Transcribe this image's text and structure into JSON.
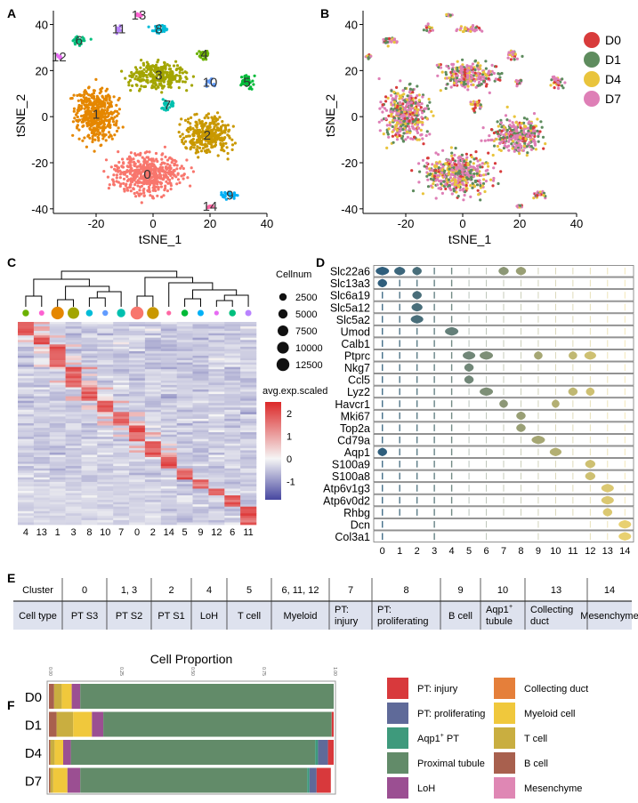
{
  "panels": {
    "a": "A",
    "b": "B",
    "c": "C",
    "d": "D",
    "e": "E",
    "f": "F"
  },
  "chart_data": [
    {
      "type": "scatter",
      "id": "tsne_clusters",
      "xlabel": "tSNE_1",
      "ylabel": "tSNE_2",
      "xlim": [
        -35,
        40
      ],
      "ylim": [
        -42,
        46
      ],
      "xticks": [
        -20,
        0,
        20,
        40
      ],
      "yticks": [
        -40,
        -20,
        0,
        20,
        40
      ],
      "clusters": [
        {
          "label": "0",
          "color": "#F8766D",
          "center": [
            -2,
            -25
          ],
          "spread": [
            20,
            15
          ]
        },
        {
          "label": "1",
          "color": "#E58700",
          "center": [
            -20,
            1
          ],
          "spread": [
            13,
            21
          ]
        },
        {
          "label": "2",
          "color": "#C99800",
          "center": [
            19,
            -8
          ],
          "spread": [
            15,
            14
          ]
        },
        {
          "label": "3",
          "color": "#A3A500",
          "center": [
            2,
            18
          ],
          "spread": [
            18,
            10
          ]
        },
        {
          "label": "4",
          "color": "#6BB100",
          "center": [
            18,
            27
          ],
          "spread": [
            4,
            4
          ]
        },
        {
          "label": "5",
          "color": "#00BA38",
          "center": [
            33,
            15
          ],
          "spread": [
            4,
            6
          ]
        },
        {
          "label": "6",
          "color": "#00BF7D",
          "center": [
            -26,
            33
          ],
          "spread": [
            6,
            3
          ]
        },
        {
          "label": "7",
          "color": "#00C0AF",
          "center": [
            5,
            5
          ],
          "spread": [
            4,
            4
          ]
        },
        {
          "label": "8",
          "color": "#00BCD8",
          "center": [
            2,
            38
          ],
          "spread": [
            7,
            3
          ]
        },
        {
          "label": "9",
          "color": "#00B0F6",
          "center": [
            27,
            -34
          ],
          "spread": [
            5,
            3
          ]
        },
        {
          "label": "10",
          "color": "#619CFF",
          "center": [
            20,
            15
          ],
          "spread": [
            3,
            3
          ]
        },
        {
          "label": "11",
          "color": "#B983FF",
          "center": [
            -12,
            38
          ],
          "spread": [
            3,
            3
          ]
        },
        {
          "label": "12",
          "color": "#E76BF3",
          "center": [
            -33,
            26
          ],
          "spread": [
            1.5,
            1.5
          ]
        },
        {
          "label": "13",
          "color": "#FD61D1",
          "center": [
            -5,
            44
          ],
          "spread": [
            2,
            1
          ]
        },
        {
          "label": "14",
          "color": "#FF67A4",
          "center": [
            20,
            -39
          ],
          "spread": [
            2,
            1
          ]
        }
      ]
    },
    {
      "type": "scatter",
      "id": "tsne_days",
      "xlabel": "tSNE_1",
      "ylabel": "tSNE_2",
      "xlim": [
        -35,
        40
      ],
      "ylim": [
        -42,
        46
      ],
      "xticks": [
        -20,
        0,
        20,
        40
      ],
      "yticks": [
        -40,
        -20,
        0,
        20,
        40
      ],
      "legend": [
        {
          "label": "D0",
          "color": "#D83B3B",
          "weight": 0.1
        },
        {
          "label": "D1",
          "color": "#5E8C5E",
          "weight": 0.25
        },
        {
          "label": "D4",
          "color": "#E9C43C",
          "weight": 0.2
        },
        {
          "label": "D7",
          "color": "#DE7FB6",
          "weight": 0.45
        }
      ],
      "legend_placement": "right"
    },
    {
      "type": "heatmap",
      "id": "marker_heatmap",
      "columns": [
        "4",
        "13",
        "1",
        "3",
        "8",
        "10",
        "7",
        "0",
        "2",
        "14",
        "5",
        "9",
        "12",
        "6",
        "11"
      ],
      "cellnum": [
        1500,
        600,
        12000,
        9500,
        1700,
        800,
        3500,
        13000,
        10500,
        300,
        1800,
        1200,
        300,
        1800,
        1200
      ],
      "size_legend_title": "Cellnum",
      "size_legend": [
        2500,
        5000,
        7500,
        10000,
        12500
      ],
      "color_legend_title": "avg.exp.scaled",
      "color_ticks": [
        2,
        1,
        0,
        -1
      ],
      "color_range": [
        -1.8,
        2.5
      ]
    },
    {
      "type": "violin",
      "id": "marker_violins",
      "genes": [
        "Slc22a6",
        "Slc13a3",
        "Slc6a19",
        "Slc5a12",
        "Slc5a2",
        "Umod",
        "Calb1",
        "Ptprc",
        "Nkg7",
        "Ccl5",
        "Lyz2",
        "Havcr1",
        "Mki67",
        "Top2a",
        "Cd79a",
        "Aqp1",
        "S100a9",
        "S100a8",
        "Atp6v1g3",
        "Atp6v0d2",
        "Rhbg",
        "Dcn",
        "Col3a1"
      ],
      "clusters": [
        "0",
        "1",
        "2",
        "3",
        "4",
        "5",
        "6",
        "7",
        "8",
        "9",
        "10",
        "11",
        "12",
        "13",
        "14"
      ],
      "high": [
        [
          0,
          0,
          1
        ],
        [
          0,
          1,
          0.7
        ],
        [
          0,
          2,
          0.5
        ],
        [
          0,
          7,
          0.6
        ],
        [
          0,
          8,
          0.6
        ],
        [
          1,
          0,
          0.5
        ],
        [
          2,
          2,
          0.5
        ],
        [
          3,
          2,
          0.7
        ],
        [
          4,
          2,
          0.9
        ],
        [
          5,
          4,
          1
        ],
        [
          7,
          5,
          0.9
        ],
        [
          7,
          6,
          1
        ],
        [
          7,
          9,
          0.4
        ],
        [
          7,
          11,
          0.4
        ],
        [
          7,
          12,
          0.8
        ],
        [
          8,
          5,
          0.5
        ],
        [
          9,
          5,
          0.5
        ],
        [
          10,
          6,
          1
        ],
        [
          10,
          11,
          0.5
        ],
        [
          10,
          12,
          0.4
        ],
        [
          11,
          7,
          0.4
        ],
        [
          11,
          10,
          0.3
        ],
        [
          12,
          8,
          0.5
        ],
        [
          13,
          8,
          0.5
        ],
        [
          14,
          9,
          1
        ],
        [
          15,
          0,
          0.5
        ],
        [
          15,
          10,
          0.8
        ],
        [
          16,
          12,
          0.6
        ],
        [
          17,
          12,
          0.6
        ],
        [
          18,
          13,
          0.9
        ],
        [
          19,
          13,
          0.9
        ],
        [
          20,
          13,
          0.5
        ],
        [
          21,
          14,
          0.9
        ],
        [
          22,
          14,
          0.9
        ]
      ]
    },
    {
      "type": "bar",
      "id": "cell_proportion",
      "title": "Cell Proportion",
      "stacked": true,
      "xlim": [
        0,
        1
      ],
      "xticks": [
        "0.00",
        "0.25",
        "0.50",
        "0.75",
        "1.00"
      ],
      "categories": [
        "D0",
        "D1",
        "D4",
        "D7"
      ],
      "series": [
        {
          "name": "B cell",
          "color": "#A8604E",
          "values": [
            0.018,
            0.027,
            0.005,
            0.005
          ]
        },
        {
          "name": "T cell",
          "color": "#C9AE40",
          "values": [
            0.027,
            0.058,
            0.015,
            0.01
          ]
        },
        {
          "name": "Myeloid cell",
          "color": "#F0C83C",
          "values": [
            0.035,
            0.066,
            0.03,
            0.05
          ]
        },
        {
          "name": "LoH",
          "color": "#9B4F92",
          "values": [
            0.03,
            0.04,
            0.027,
            0.045
          ]
        },
        {
          "name": "Proximal tubule",
          "color": "#628B69",
          "values": [
            0.89,
            0.802,
            0.858,
            0.797
          ]
        },
        {
          "name": "Aqp1+ PT",
          "color": "#3E9A7C",
          "values": [
            0,
            0,
            0.01,
            0.008
          ]
        },
        {
          "name": "PT: proliferating",
          "color": "#5F6A99",
          "values": [
            0,
            0,
            0.035,
            0.025
          ]
        },
        {
          "name": "PT: injury",
          "color": "#D8393C",
          "values": [
            0,
            0.007,
            0.02,
            0.05
          ]
        },
        {
          "name": "Collecting duct",
          "color": "#E57F3A",
          "values": [
            0,
            0,
            0,
            0
          ]
        },
        {
          "name": "Mesenchyme",
          "color": "#DF87B4",
          "values": [
            0,
            0,
            0,
            0
          ]
        }
      ],
      "legend": [
        {
          "label": "PT: injury",
          "color": "#D8393C"
        },
        {
          "label": "PT: proliferating",
          "color": "#5F6A99"
        },
        {
          "label": "Aqp1",
          "sup": "+",
          "suffix": " PT",
          "color": "#3E9A7C"
        },
        {
          "label": "Proximal tubule",
          "color": "#628B69"
        },
        {
          "label": "LoH",
          "color": "#9B4F92"
        },
        {
          "label": "Collecting duct",
          "color": "#E57F3A"
        },
        {
          "label": "Myeloid cell",
          "color": "#F0C83C"
        },
        {
          "label": "T cell",
          "color": "#C9AE40"
        },
        {
          "label": "B cell",
          "color": "#A8604E"
        },
        {
          "label": "Mesenchyme",
          "color": "#DF87B4"
        }
      ]
    }
  ],
  "table": {
    "header": [
      "Cluster",
      "0",
      "1, 3",
      "2",
      "4",
      "5",
      "6, 11, 12",
      "7",
      "8",
      "9",
      "10",
      "13",
      "14"
    ],
    "row": [
      [
        "Cell type"
      ],
      [
        "PT S3"
      ],
      [
        "PT S2"
      ],
      [
        "PT S1"
      ],
      [
        "LoH"
      ],
      [
        "T cell"
      ],
      [
        "Myeloid"
      ],
      [
        "PT:",
        "injury"
      ],
      [
        "PT:",
        "proliferating"
      ],
      [
        "B cell"
      ],
      [
        "Aqp1",
        "tubule"
      ],
      [
        "Collecting",
        "duct"
      ],
      [
        "Mesenchyme"
      ]
    ]
  }
}
